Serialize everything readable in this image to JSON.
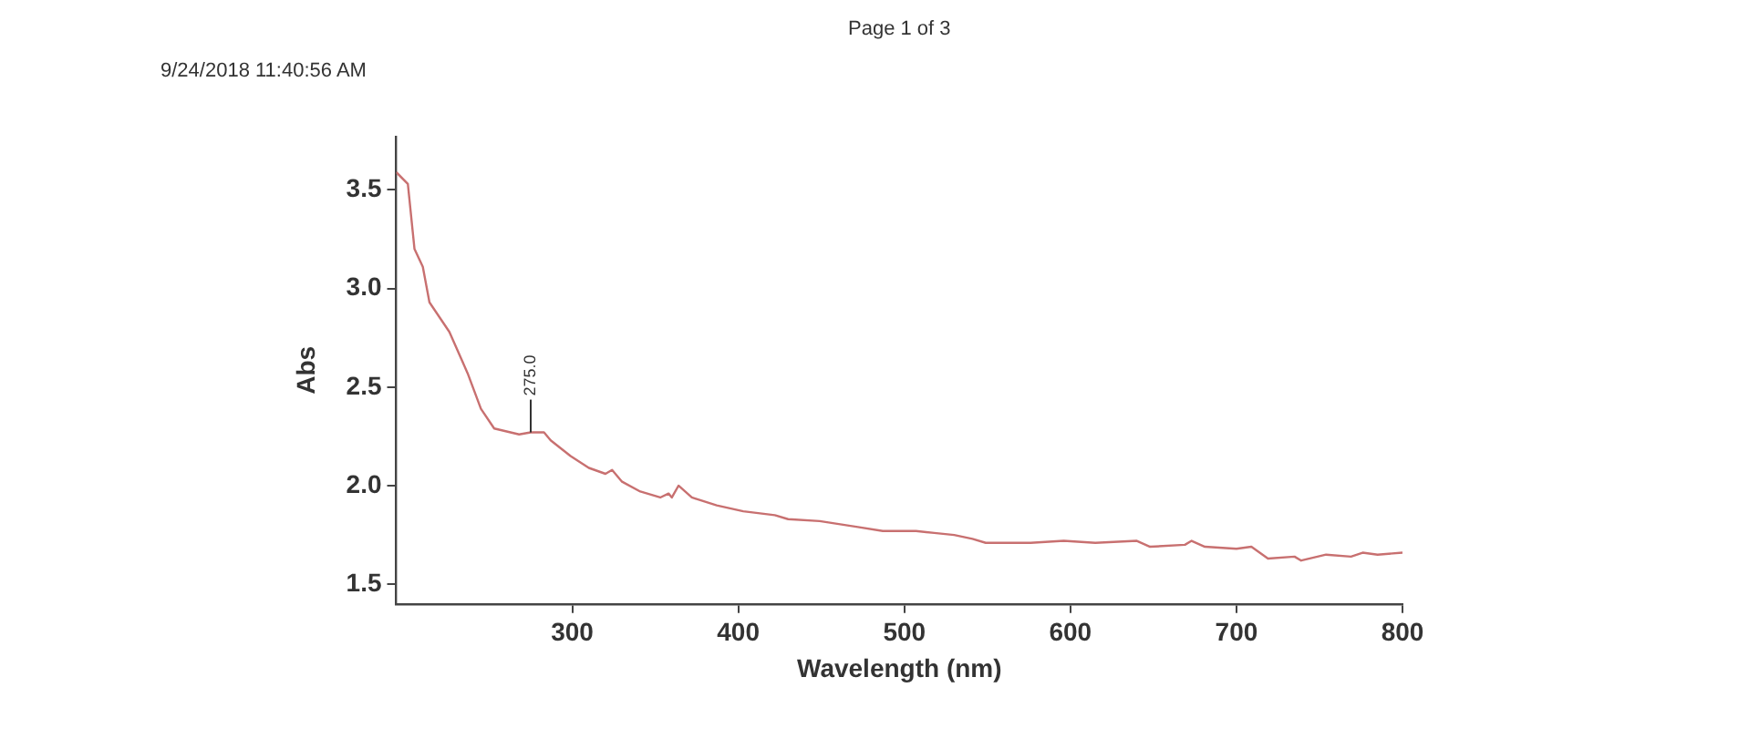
{
  "chart_data": {
    "type": "line",
    "xlabel": "Wavelength (nm)",
    "ylabel": "Abs",
    "annotations": [
      "9/24/2018 11:40:56 AM",
      "Page 1 of 3",
      {
        "text": "275.0",
        "x": 275,
        "y": 2.27
      }
    ],
    "series": [
      {
        "color": "#c87070",
        "x": [
          194,
          201,
          205,
          210,
          214,
          226,
          237,
          245,
          253,
          268,
          275,
          283,
          287,
          299,
          310,
          320,
          324,
          330,
          341,
          353,
          358,
          360,
          364,
          372,
          387,
          403,
          422,
          430,
          449,
          472,
          487,
          507,
          518,
          530,
          541,
          549,
          576,
          596,
          615,
          640,
          648,
          669,
          673,
          681,
          700,
          709,
          719,
          735,
          739,
          754,
          769,
          776,
          785,
          800
        ],
        "values": [
          3.59,
          3.53,
          3.2,
          3.11,
          2.93,
          2.78,
          2.57,
          2.39,
          2.29,
          2.26,
          2.27,
          2.27,
          2.23,
          2.15,
          2.09,
          2.06,
          2.08,
          2.02,
          1.97,
          1.94,
          1.96,
          1.94,
          2.0,
          1.94,
          1.9,
          1.87,
          1.85,
          1.83,
          1.82,
          1.79,
          1.77,
          1.77,
          1.76,
          1.75,
          1.73,
          1.71,
          1.71,
          1.72,
          1.71,
          1.72,
          1.69,
          1.7,
          1.72,
          1.69,
          1.68,
          1.69,
          1.63,
          1.64,
          1.62,
          1.65,
          1.64,
          1.66,
          1.65,
          1.66
        ]
      }
    ],
    "xlim": [
      194,
      800
    ],
    "ylim": [
      1.4,
      3.77
    ],
    "xticks": [
      300,
      400,
      500,
      600,
      700,
      800
    ],
    "yticks": [
      1.5,
      {
        "value": 2,
        "label": "2.0"
      },
      2.5,
      {
        "value": 3,
        "label": "3.0"
      },
      3.5
    ],
    "grid": false,
    "legend": false,
    "marker": "none",
    "line_style": "solid"
  }
}
